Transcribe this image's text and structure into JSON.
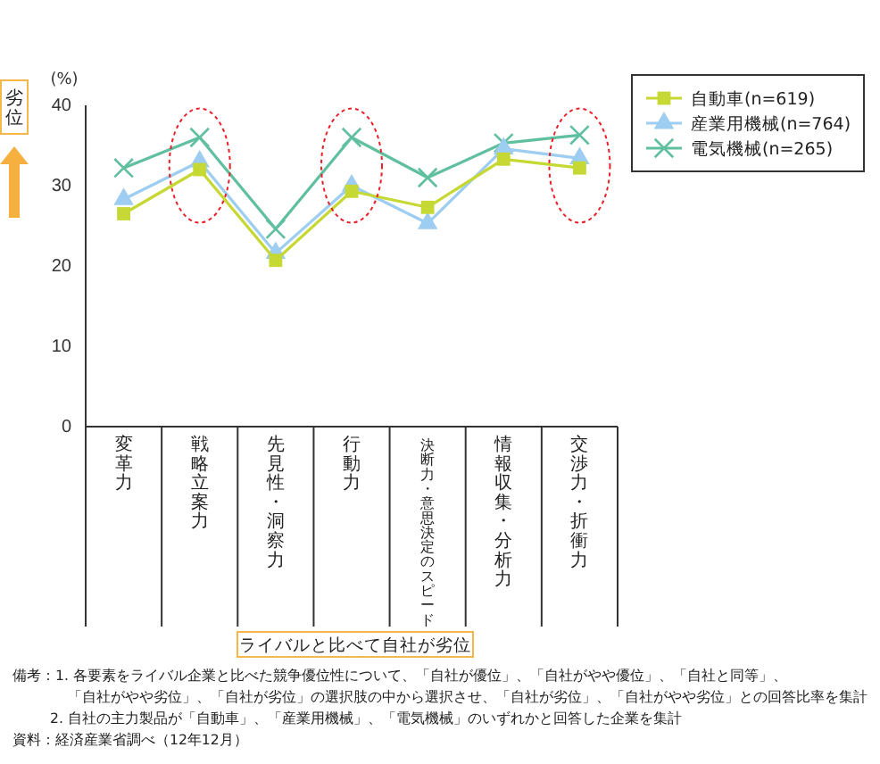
{
  "chart_data": {
    "type": "line",
    "ylabel": "(%)",
    "categories": [
      "変革力",
      "戦略立案力",
      "先見性・洞察力",
      "行動力",
      "決断力・意思決定のスピード",
      "情報収集・分析力",
      "交渉力・折衝力"
    ],
    "series": [
      {
        "name": "自動車(n=619)",
        "color": "#c5d833",
        "marker": "square",
        "values": [
          26.5,
          32,
          20.7,
          29.3,
          27.3,
          33.3,
          32.2
        ]
      },
      {
        "name": "産業用機械(n=764)",
        "color": "#9dcdf0",
        "marker": "triangle",
        "values": [
          28.3,
          33,
          21.6,
          30,
          25.3,
          34.6,
          33.4
        ]
      },
      {
        "name": "電気機械(n=265)",
        "color": "#5fbf9f",
        "marker": "cross",
        "values": [
          32.2,
          36,
          24.6,
          36,
          31,
          35.3,
          36.3
        ]
      }
    ],
    "ylim": [
      0,
      40
    ],
    "yticks": [
      0,
      10,
      20,
      30,
      40
    ],
    "grid": false,
    "legend": "top right",
    "annotations": [
      "劣位",
      "ライバルと比べて自社が劣位",
      "備考：1. 各要素をライバル企業と比べた競争優位性について、「自社が優位」、「自社がやや優位」、「自社と同等」、",
      "「自社がやや劣位」、「自社が劣位」の選択肢の中から選択させ、「自社が劣位」、「自社がやや劣位」との回答比率を集計",
      "2. 自社の主力製品が「自動車」、「産業用機械」、「電気機械」のいずれかと回答した企業を集計",
      "資料：経済産業省調べ（12年12月）"
    ]
  }
}
